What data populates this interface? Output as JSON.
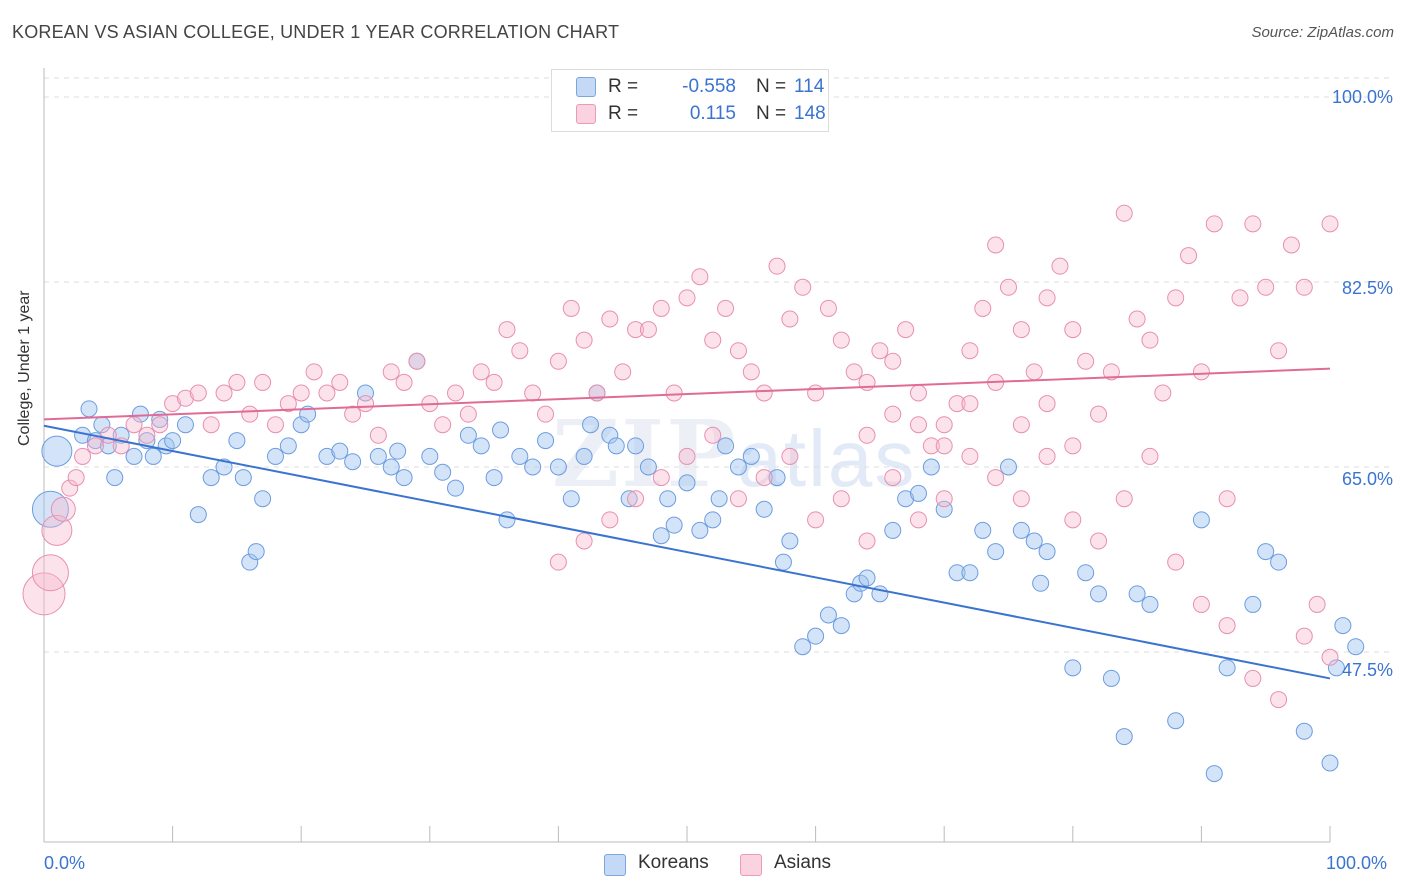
{
  "title": "KOREAN VS ASIAN COLLEGE, UNDER 1 YEAR CORRELATION CHART",
  "source": "Source: ZipAtlas.com",
  "watermark": {
    "zip": "ZIP",
    "atlas": "atlas"
  },
  "legend": {
    "koreans": {
      "r_label": "R =",
      "r_value": "-0.558",
      "n_label": "N =",
      "n_value": "114",
      "color": "#a9c8f0"
    },
    "asians": {
      "r_label": "R =",
      "r_value": "0.115",
      "n_label": "N =",
      "n_value": "148",
      "color": "#f7bcd0"
    }
  },
  "bottom_legend": {
    "koreans": "Koreans",
    "asians": "Asians"
  },
  "chart_data": {
    "type": "scatter",
    "title": "KOREAN VS ASIAN COLLEGE, UNDER 1 YEAR CORRELATION CHART",
    "xlabel": "",
    "ylabel": "College, Under 1 year",
    "xlim": [
      0,
      100
    ],
    "ylim": [
      34,
      102
    ],
    "x_tick_labels": [
      "0.0%",
      "100.0%"
    ],
    "y_ticks": [
      47.5,
      65.0,
      82.5,
      100.0
    ],
    "y_tick_labels": [
      "47.5%",
      "65.0%",
      "82.5%",
      "100.0%"
    ],
    "grid": "horizontal dashed",
    "colors": {
      "koreans": "#3a74d0",
      "asians": "#e06b96"
    },
    "series": [
      {
        "name": "Koreans",
        "trend": {
          "x": [
            0,
            100
          ],
          "y": [
            68.9,
            45.0
          ]
        },
        "points": [
          [
            1,
            66.5
          ],
          [
            0.5,
            61
          ],
          [
            3,
            68
          ],
          [
            3.5,
            70.5
          ],
          [
            4,
            67.5
          ],
          [
            4.5,
            69
          ],
          [
            5,
            67
          ],
          [
            5.5,
            64
          ],
          [
            6,
            68
          ],
          [
            7,
            66
          ],
          [
            7.5,
            70
          ],
          [
            8,
            67.5
          ],
          [
            8.5,
            66
          ],
          [
            9,
            69.5
          ],
          [
            9.5,
            67
          ],
          [
            10,
            67.5
          ],
          [
            11,
            69
          ],
          [
            12,
            60.5
          ],
          [
            13,
            64
          ],
          [
            14,
            65
          ],
          [
            15,
            67.5
          ],
          [
            15.5,
            64
          ],
          [
            16,
            56
          ],
          [
            16.5,
            57
          ],
          [
            17,
            62
          ],
          [
            18,
            66
          ],
          [
            19,
            67
          ],
          [
            20,
            69
          ],
          [
            20.5,
            70
          ],
          [
            22,
            66
          ],
          [
            23,
            66.5
          ],
          [
            24,
            65.5
          ],
          [
            25,
            72
          ],
          [
            26,
            66
          ],
          [
            27,
            65
          ],
          [
            27.5,
            66.5
          ],
          [
            28,
            64
          ],
          [
            29,
            75
          ],
          [
            30,
            66
          ],
          [
            31,
            64.5
          ],
          [
            32,
            63
          ],
          [
            33,
            68
          ],
          [
            34,
            67
          ],
          [
            35,
            64
          ],
          [
            35.5,
            68.5
          ],
          [
            36,
            60
          ],
          [
            37,
            66
          ],
          [
            38,
            65
          ],
          [
            39,
            67.5
          ],
          [
            40,
            65
          ],
          [
            41,
            62
          ],
          [
            42,
            66
          ],
          [
            42.5,
            69
          ],
          [
            43,
            72
          ],
          [
            44,
            68
          ],
          [
            44.5,
            67
          ],
          [
            45.5,
            62
          ],
          [
            46,
            67
          ],
          [
            47,
            65
          ],
          [
            48,
            58.5
          ],
          [
            48.5,
            62
          ],
          [
            49,
            59.5
          ],
          [
            50,
            63.5
          ],
          [
            51,
            59
          ],
          [
            52,
            60
          ],
          [
            52.5,
            62
          ],
          [
            53,
            67
          ],
          [
            54,
            65
          ],
          [
            55,
            66
          ],
          [
            56,
            61
          ],
          [
            57,
            64
          ],
          [
            57.5,
            56
          ],
          [
            58,
            58
          ],
          [
            59,
            48
          ],
          [
            60,
            49
          ],
          [
            61,
            51
          ],
          [
            62,
            50
          ],
          [
            63,
            53
          ],
          [
            63.5,
            54
          ],
          [
            64,
            54.5
          ],
          [
            65,
            53
          ],
          [
            66,
            59
          ],
          [
            67,
            62
          ],
          [
            68,
            62.5
          ],
          [
            69,
            65
          ],
          [
            70,
            61
          ],
          [
            71,
            55
          ],
          [
            72,
            55
          ],
          [
            73,
            59
          ],
          [
            74,
            57
          ],
          [
            75,
            65
          ],
          [
            76,
            59
          ],
          [
            77,
            58
          ],
          [
            77.5,
            54
          ],
          [
            78,
            57
          ],
          [
            80,
            46
          ],
          [
            81,
            55
          ],
          [
            82,
            53
          ],
          [
            83,
            45
          ],
          [
            84,
            39.5
          ],
          [
            85,
            53
          ],
          [
            86,
            52
          ],
          [
            88,
            41
          ],
          [
            90,
            60
          ],
          [
            91,
            36
          ],
          [
            92,
            46
          ],
          [
            94,
            52
          ],
          [
            95,
            57
          ],
          [
            96,
            56
          ],
          [
            98,
            40
          ],
          [
            100,
            37
          ],
          [
            100.5,
            46
          ],
          [
            101,
            50
          ],
          [
            102,
            48
          ]
        ]
      },
      {
        "name": "Asians",
        "trend": {
          "x": [
            0,
            100
          ],
          "y": [
            69.5,
            74.3
          ]
        },
        "points": [
          [
            0,
            53
          ],
          [
            0.5,
            55
          ],
          [
            1,
            59
          ],
          [
            1.5,
            61
          ],
          [
            2,
            63
          ],
          [
            2.5,
            64
          ],
          [
            3,
            66
          ],
          [
            4,
            67
          ],
          [
            5,
            68
          ],
          [
            6,
            67
          ],
          [
            7,
            69
          ],
          [
            8,
            68
          ],
          [
            9,
            69
          ],
          [
            10,
            71
          ],
          [
            11,
            71.5
          ],
          [
            12,
            72
          ],
          [
            13,
            69
          ],
          [
            14,
            72
          ],
          [
            15,
            73
          ],
          [
            16,
            70
          ],
          [
            17,
            73
          ],
          [
            18,
            69
          ],
          [
            19,
            71
          ],
          [
            20,
            72
          ],
          [
            21,
            74
          ],
          [
            22,
            72
          ],
          [
            23,
            73
          ],
          [
            24,
            70
          ],
          [
            25,
            71
          ],
          [
            26,
            68
          ],
          [
            27,
            74
          ],
          [
            28,
            73
          ],
          [
            29,
            75
          ],
          [
            30,
            71
          ],
          [
            31,
            69
          ],
          [
            32,
            72
          ],
          [
            33,
            70
          ],
          [
            34,
            74
          ],
          [
            35,
            73
          ],
          [
            36,
            78
          ],
          [
            37,
            76
          ],
          [
            38,
            72
          ],
          [
            39,
            70
          ],
          [
            40,
            75
          ],
          [
            41,
            80
          ],
          [
            42,
            77
          ],
          [
            43,
            72
          ],
          [
            44,
            79
          ],
          [
            45,
            74
          ],
          [
            46,
            78
          ],
          [
            47,
            78
          ],
          [
            48,
            80
          ],
          [
            49,
            72
          ],
          [
            50,
            81
          ],
          [
            51,
            83
          ],
          [
            52,
            77
          ],
          [
            53,
            80
          ],
          [
            54,
            76
          ],
          [
            55,
            74
          ],
          [
            56,
            72
          ],
          [
            57,
            84
          ],
          [
            58,
            79
          ],
          [
            59,
            82
          ],
          [
            60,
            72
          ],
          [
            61,
            80
          ],
          [
            62,
            77
          ],
          [
            63,
            74
          ],
          [
            64,
            73
          ],
          [
            65,
            76
          ],
          [
            66,
            75
          ],
          [
            67,
            78
          ],
          [
            68,
            72
          ],
          [
            69,
            67
          ],
          [
            70,
            69
          ],
          [
            71,
            71
          ],
          [
            72,
            76
          ],
          [
            73,
            80
          ],
          [
            74,
            86
          ],
          [
            75,
            82
          ],
          [
            76,
            78
          ],
          [
            77,
            74
          ],
          [
            78,
            81
          ],
          [
            79,
            84
          ],
          [
            80,
            78
          ],
          [
            81,
            75
          ],
          [
            82,
            70
          ],
          [
            83,
            74
          ],
          [
            84,
            89
          ],
          [
            85,
            79
          ],
          [
            86,
            77
          ],
          [
            87,
            72
          ],
          [
            88,
            81
          ],
          [
            89,
            85
          ],
          [
            90,
            74
          ],
          [
            91,
            88
          ],
          [
            92,
            62
          ],
          [
            93,
            81
          ],
          [
            94,
            88
          ],
          [
            95,
            82
          ],
          [
            96,
            76
          ],
          [
            97,
            86
          ],
          [
            98,
            82
          ],
          [
            99,
            52
          ],
          [
            100,
            88
          ],
          [
            64,
            58
          ],
          [
            66,
            64
          ],
          [
            68,
            60
          ],
          [
            70,
            62
          ],
          [
            72,
            66
          ],
          [
            74,
            64
          ],
          [
            76,
            62
          ],
          [
            78,
            66
          ],
          [
            80,
            60
          ],
          [
            82,
            58
          ],
          [
            84,
            62
          ],
          [
            86,
            66
          ],
          [
            88,
            56
          ],
          [
            90,
            52
          ],
          [
            92,
            50
          ],
          [
            94,
            45
          ],
          [
            96,
            43
          ],
          [
            98,
            49
          ],
          [
            100,
            47
          ],
          [
            40,
            56
          ],
          [
            42,
            58
          ],
          [
            44,
            60
          ],
          [
            46,
            62
          ],
          [
            48,
            64
          ],
          [
            50,
            66
          ],
          [
            52,
            68
          ],
          [
            54,
            62
          ],
          [
            56,
            64
          ],
          [
            58,
            66
          ],
          [
            60,
            60
          ],
          [
            62,
            62
          ],
          [
            64,
            68
          ],
          [
            66,
            70
          ],
          [
            68,
            69
          ],
          [
            70,
            67
          ],
          [
            72,
            71
          ],
          [
            74,
            73
          ],
          [
            76,
            69
          ],
          [
            78,
            71
          ],
          [
            80,
            67
          ]
        ]
      }
    ]
  }
}
